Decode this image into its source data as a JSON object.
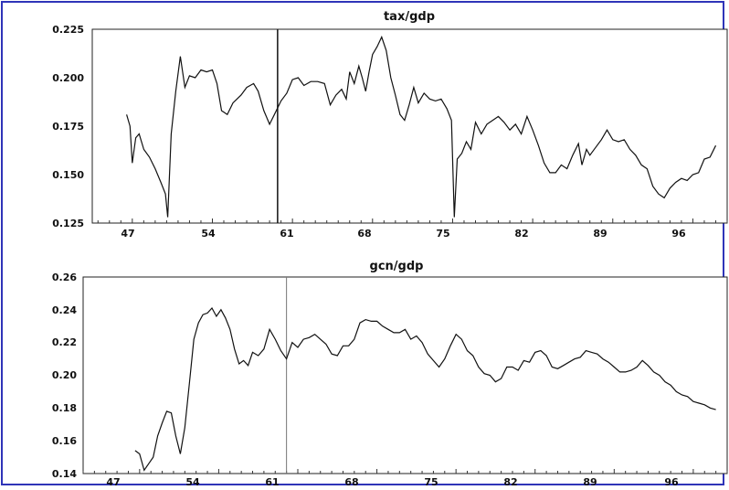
{
  "colors": {
    "frame": "#2f34b8",
    "line": "#111111",
    "axis": "#222222"
  },
  "chart_data": [
    {
      "type": "line",
      "title": "tax/gdp",
      "xlabel": "",
      "ylabel": "",
      "ylim": [
        0.125,
        0.225
      ],
      "xlim": [
        1943.5,
        1999
      ],
      "grid": false,
      "yticks": [
        "0.225",
        "0.200",
        "0.175",
        "0.150",
        "0.125"
      ],
      "xticks": [
        "47",
        "54",
        "61",
        "68",
        "75",
        "82",
        "89",
        "96"
      ],
      "vline_x": 1959.7,
      "series": [
        {
          "points": [
            [
              1946.5,
              0.181
            ],
            [
              1946.8,
              0.175
            ],
            [
              1947.0,
              0.156
            ],
            [
              1947.3,
              0.169
            ],
            [
              1947.6,
              0.171
            ],
            [
              1948.0,
              0.163
            ],
            [
              1948.5,
              0.159
            ],
            [
              1949.0,
              0.153
            ],
            [
              1949.5,
              0.146
            ],
            [
              1949.9,
              0.14
            ],
            [
              1950.1,
              0.128
            ],
            [
              1950.4,
              0.171
            ],
            [
              1950.8,
              0.193
            ],
            [
              1951.2,
              0.211
            ],
            [
              1951.6,
              0.195
            ],
            [
              1952.0,
              0.201
            ],
            [
              1952.5,
              0.2
            ],
            [
              1953.0,
              0.204
            ],
            [
              1953.5,
              0.203
            ],
            [
              1954.0,
              0.204
            ],
            [
              1954.4,
              0.197
            ],
            [
              1954.8,
              0.183
            ],
            [
              1955.3,
              0.181
            ],
            [
              1955.8,
              0.187
            ],
            [
              1956.5,
              0.191
            ],
            [
              1957.0,
              0.195
            ],
            [
              1957.6,
              0.197
            ],
            [
              1958.0,
              0.193
            ],
            [
              1958.5,
              0.183
            ],
            [
              1959.0,
              0.176
            ],
            [
              1959.5,
              0.182
            ],
            [
              1960.0,
              0.188
            ],
            [
              1960.5,
              0.192
            ],
            [
              1961.0,
              0.199
            ],
            [
              1961.5,
              0.2
            ],
            [
              1962.0,
              0.196
            ],
            [
              1962.6,
              0.198
            ],
            [
              1963.2,
              0.198
            ],
            [
              1963.8,
              0.197
            ],
            [
              1964.3,
              0.186
            ],
            [
              1964.8,
              0.191
            ],
            [
              1965.3,
              0.194
            ],
            [
              1965.7,
              0.189
            ],
            [
              1966.0,
              0.203
            ],
            [
              1966.4,
              0.197
            ],
            [
              1966.8,
              0.206
            ],
            [
              1967.1,
              0.2
            ],
            [
              1967.4,
              0.193
            ],
            [
              1967.7,
              0.203
            ],
            [
              1968.0,
              0.212
            ],
            [
              1968.4,
              0.216
            ],
            [
              1968.8,
              0.221
            ],
            [
              1969.2,
              0.214
            ],
            [
              1969.6,
              0.2
            ],
            [
              1970.0,
              0.191
            ],
            [
              1970.4,
              0.181
            ],
            [
              1970.8,
              0.178
            ],
            [
              1971.2,
              0.186
            ],
            [
              1971.6,
              0.195
            ],
            [
              1972.0,
              0.187
            ],
            [
              1972.5,
              0.192
            ],
            [
              1973.0,
              0.189
            ],
            [
              1973.5,
              0.188
            ],
            [
              1974.0,
              0.189
            ],
            [
              1974.5,
              0.184
            ],
            [
              1974.9,
              0.178
            ],
            [
              1975.15,
              0.128
            ],
            [
              1975.4,
              0.158
            ],
            [
              1975.8,
              0.161
            ],
            [
              1976.2,
              0.167
            ],
            [
              1976.6,
              0.163
            ],
            [
              1977.0,
              0.177
            ],
            [
              1977.5,
              0.171
            ],
            [
              1978.0,
              0.176
            ],
            [
              1978.5,
              0.178
            ],
            [
              1979.0,
              0.18
            ],
            [
              1979.5,
              0.177
            ],
            [
              1980.0,
              0.173
            ],
            [
              1980.5,
              0.176
            ],
            [
              1981.0,
              0.171
            ],
            [
              1981.5,
              0.18
            ],
            [
              1982.0,
              0.173
            ],
            [
              1982.5,
              0.165
            ],
            [
              1983.0,
              0.156
            ],
            [
              1983.5,
              0.151
            ],
            [
              1984.0,
              0.151
            ],
            [
              1984.5,
              0.155
            ],
            [
              1985.0,
              0.153
            ],
            [
              1985.5,
              0.16
            ],
            [
              1986.0,
              0.166
            ],
            [
              1986.3,
              0.155
            ],
            [
              1986.7,
              0.163
            ],
            [
              1987.0,
              0.16
            ],
            [
              1987.5,
              0.164
            ],
            [
              1988.0,
              0.168
            ],
            [
              1988.5,
              0.173
            ],
            [
              1989.0,
              0.168
            ],
            [
              1989.5,
              0.167
            ],
            [
              1990.0,
              0.168
            ],
            [
              1990.5,
              0.163
            ],
            [
              1991.0,
              0.16
            ],
            [
              1991.5,
              0.155
            ],
            [
              1992.0,
              0.153
            ],
            [
              1992.5,
              0.144
            ],
            [
              1993.0,
              0.14
            ],
            [
              1993.5,
              0.138
            ],
            [
              1994.0,
              0.143
            ],
            [
              1994.5,
              0.146
            ],
            [
              1995.0,
              0.148
            ],
            [
              1995.5,
              0.147
            ],
            [
              1996.0,
              0.15
            ],
            [
              1996.5,
              0.151
            ],
            [
              1997.0,
              0.158
            ],
            [
              1997.5,
              0.159
            ],
            [
              1998.0,
              0.165
            ]
          ]
        }
      ]
    },
    {
      "type": "line",
      "title": "gcn/gdp",
      "xlabel": "",
      "ylabel": "",
      "ylim": [
        0.14,
        0.26
      ],
      "xlim": [
        1942.0,
        1999
      ],
      "grid": false,
      "yticks": [
        "0.26",
        "0.24",
        "0.22",
        "0.20",
        "0.18",
        "0.16",
        "0.14"
      ],
      "xticks": [
        "47",
        "54",
        "61",
        "68",
        "75",
        "82",
        "89",
        "96"
      ],
      "vline_x": 1960.0,
      "series": [
        {
          "points": [
            [
              1946.6,
              0.154
            ],
            [
              1947.0,
              0.152
            ],
            [
              1947.4,
              0.142
            ],
            [
              1947.8,
              0.146
            ],
            [
              1948.2,
              0.15
            ],
            [
              1948.6,
              0.163
            ],
            [
              1949.0,
              0.171
            ],
            [
              1949.4,
              0.178
            ],
            [
              1949.8,
              0.177
            ],
            [
              1950.2,
              0.163
            ],
            [
              1950.6,
              0.152
            ],
            [
              1951.0,
              0.168
            ],
            [
              1951.4,
              0.195
            ],
            [
              1951.8,
              0.222
            ],
            [
              1952.2,
              0.232
            ],
            [
              1952.6,
              0.237
            ],
            [
              1953.0,
              0.238
            ],
            [
              1953.4,
              0.241
            ],
            [
              1953.8,
              0.236
            ],
            [
              1954.2,
              0.24
            ],
            [
              1954.6,
              0.235
            ],
            [
              1955.0,
              0.228
            ],
            [
              1955.4,
              0.216
            ],
            [
              1955.8,
              0.207
            ],
            [
              1956.2,
              0.209
            ],
            [
              1956.6,
              0.206
            ],
            [
              1957.0,
              0.214
            ],
            [
              1957.5,
              0.212
            ],
            [
              1958.0,
              0.216
            ],
            [
              1958.5,
              0.228
            ],
            [
              1959.0,
              0.222
            ],
            [
              1959.5,
              0.215
            ],
            [
              1960.0,
              0.21
            ],
            [
              1960.5,
              0.22
            ],
            [
              1961.0,
              0.217
            ],
            [
              1961.5,
              0.222
            ],
            [
              1962.0,
              0.223
            ],
            [
              1962.5,
              0.225
            ],
            [
              1963.0,
              0.222
            ],
            [
              1963.5,
              0.219
            ],
            [
              1964.0,
              0.213
            ],
            [
              1964.5,
              0.212
            ],
            [
              1965.0,
              0.218
            ],
            [
              1965.5,
              0.218
            ],
            [
              1966.0,
              0.222
            ],
            [
              1966.5,
              0.232
            ],
            [
              1967.0,
              0.234
            ],
            [
              1967.5,
              0.233
            ],
            [
              1968.0,
              0.233
            ],
            [
              1968.5,
              0.23
            ],
            [
              1969.0,
              0.228
            ],
            [
              1969.5,
              0.226
            ],
            [
              1970.0,
              0.226
            ],
            [
              1970.5,
              0.228
            ],
            [
              1971.0,
              0.222
            ],
            [
              1971.5,
              0.224
            ],
            [
              1972.0,
              0.22
            ],
            [
              1972.5,
              0.213
            ],
            [
              1973.0,
              0.209
            ],
            [
              1973.5,
              0.205
            ],
            [
              1974.0,
              0.21
            ],
            [
              1974.5,
              0.218
            ],
            [
              1975.0,
              0.225
            ],
            [
              1975.5,
              0.222
            ],
            [
              1976.0,
              0.215
            ],
            [
              1976.5,
              0.212
            ],
            [
              1977.0,
              0.205
            ],
            [
              1977.5,
              0.201
            ],
            [
              1978.0,
              0.2
            ],
            [
              1978.5,
              0.196
            ],
            [
              1979.0,
              0.198
            ],
            [
              1979.5,
              0.205
            ],
            [
              1980.0,
              0.205
            ],
            [
              1980.5,
              0.203
            ],
            [
              1981.0,
              0.209
            ],
            [
              1981.5,
              0.208
            ],
            [
              1982.0,
              0.214
            ],
            [
              1982.5,
              0.215
            ],
            [
              1983.0,
              0.212
            ],
            [
              1983.5,
              0.205
            ],
            [
              1984.0,
              0.204
            ],
            [
              1984.5,
              0.206
            ],
            [
              1985.0,
              0.208
            ],
            [
              1985.5,
              0.21
            ],
            [
              1986.0,
              0.211
            ],
            [
              1986.5,
              0.215
            ],
            [
              1987.0,
              0.214
            ],
            [
              1987.5,
              0.213
            ],
            [
              1988.0,
              0.21
            ],
            [
              1988.5,
              0.208
            ],
            [
              1989.0,
              0.205
            ],
            [
              1989.5,
              0.202
            ],
            [
              1990.0,
              0.202
            ],
            [
              1990.5,
              0.203
            ],
            [
              1991.0,
              0.205
            ],
            [
              1991.5,
              0.209
            ],
            [
              1992.0,
              0.206
            ],
            [
              1992.5,
              0.202
            ],
            [
              1993.0,
              0.2
            ],
            [
              1993.5,
              0.196
            ],
            [
              1994.0,
              0.194
            ],
            [
              1994.5,
              0.19
            ],
            [
              1995.0,
              0.188
            ],
            [
              1995.5,
              0.187
            ],
            [
              1996.0,
              0.184
            ],
            [
              1996.5,
              0.183
            ],
            [
              1997.0,
              0.182
            ],
            [
              1997.5,
              0.18
            ],
            [
              1998.0,
              0.179
            ]
          ]
        }
      ]
    }
  ]
}
